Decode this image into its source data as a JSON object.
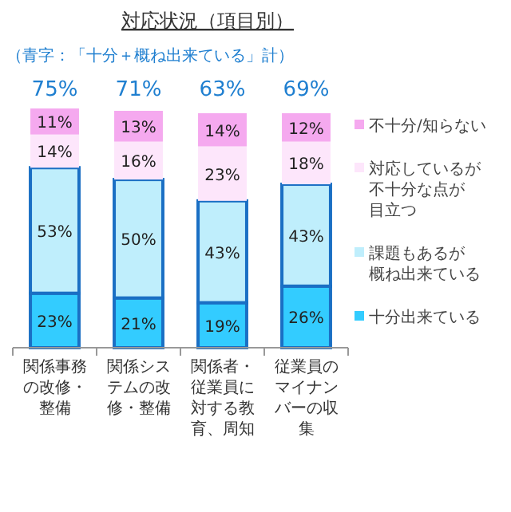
{
  "chart_data": {
    "type": "bar",
    "stacked": true,
    "title": "対応状況（項目別）",
    "subtitle": "（青字：「十分＋概ね出来ている」計）",
    "categories": [
      "関係事務の改修・整備",
      "関係システムの改修・整備",
      "関係者・従業員に対する教育、周知",
      "従業員のマイナンバーの収集"
    ],
    "series": [
      {
        "name": "十分出来ている",
        "color": "#33ccff",
        "values": [
          23,
          21,
          19,
          26
        ],
        "value_labels": [
          "23%",
          "21%",
          "19%",
          "26%"
        ]
      },
      {
        "name": "課題もあるが概ね出来ている",
        "color": "#bfeefc",
        "values": [
          53,
          50,
          43,
          43
        ],
        "value_labels": [
          "53%",
          "50%",
          "43%",
          "43%"
        ]
      },
      {
        "name": "対応しているが不十分な点が目立つ",
        "color": "#fde6fb",
        "values": [
          14,
          16,
          23,
          18
        ],
        "value_labels": [
          "14%",
          "16%",
          "23%",
          "18%"
        ]
      },
      {
        "name": "不十分/知らない",
        "color": "#f5a9ef",
        "values": [
          11,
          13,
          14,
          12
        ],
        "value_labels": [
          "11%",
          "13%",
          "14%",
          "12%"
        ]
      }
    ],
    "annotations": [
      "75%",
      "71%",
      "63%",
      "69%"
    ],
    "legend": "right"
  }
}
